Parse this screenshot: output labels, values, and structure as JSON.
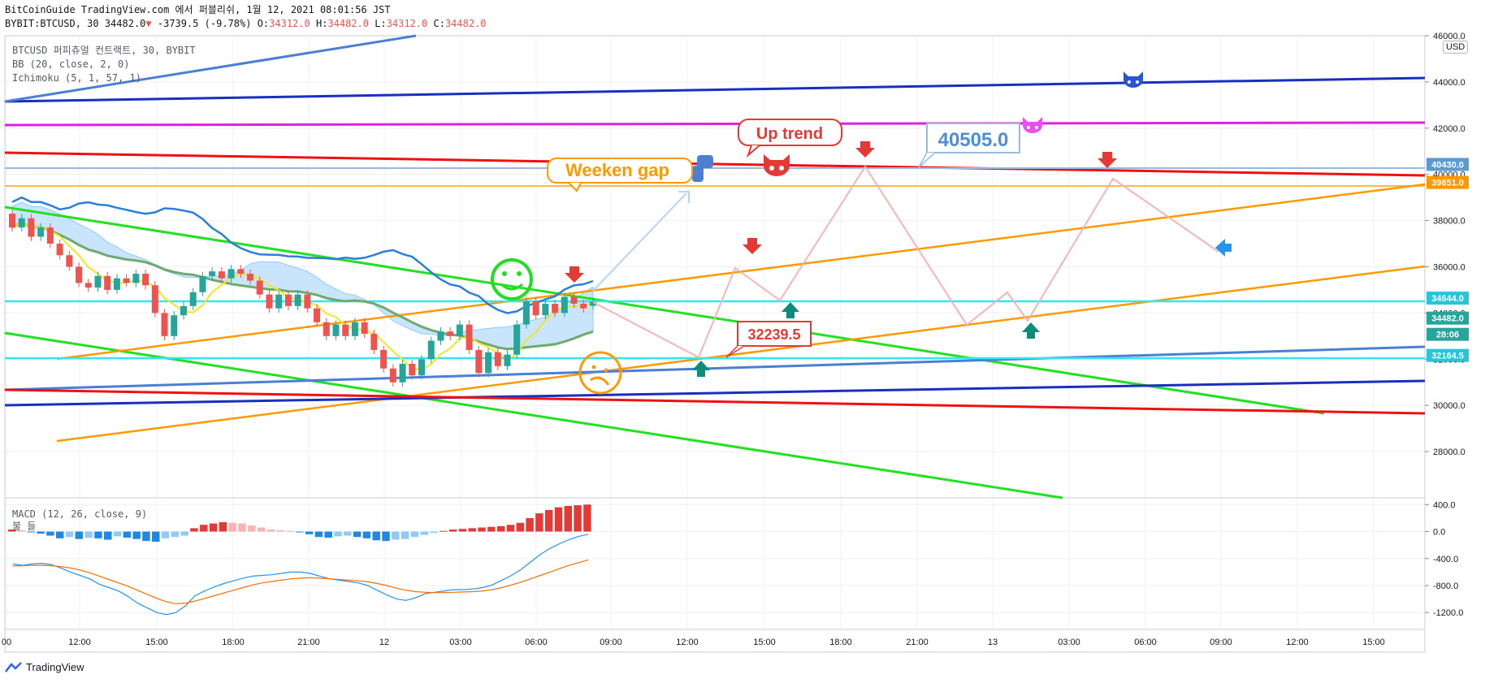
{
  "header": {
    "line1": "BitCoinGuide TradingView.com 에서 퍼블리쉬, 1월 12, 2021 08:01:56 JST",
    "symbol": "BYBIT:BTCUSD, 30",
    "last": "34482.0",
    "change": "-3739.5 (-9.78%)",
    "o_label": "O:",
    "o": "34312.0",
    "h_label": "H:",
    "h": "34482.0",
    "l_label": "L:",
    "l": "34312.0",
    "c_label": "C:",
    "c": "34482.0"
  },
  "legend": [
    "BTCUSD 퍼피츄얼 컨트랙트, 30, BYBIT",
    "BB (20, close, 2, 0)",
    "Ichimoku (5, 1, 57, 1)"
  ],
  "macd_legend": {
    "name": "MACD (12, 26, close, 9)",
    "sub": "불 들"
  },
  "currency": "USD",
  "footer": {
    "brand": "TradingView"
  },
  "colors": {
    "up": "#26a69a",
    "down": "#ef5350",
    "bb": "#2196f3",
    "cloud": "#90caf9"
  },
  "chart_data": {
    "type": "candlestick",
    "price_axis": {
      "ticks": [
        28000,
        30000,
        32000,
        34000,
        36000,
        38000,
        40000,
        42000,
        44000,
        46000
      ],
      "range": [
        26000,
        46000
      ]
    },
    "time_axis": [
      "00",
      "12:00",
      "15:00",
      "18:00",
      "21:00",
      "12",
      "03:00",
      "06:00",
      "09:00",
      "12:00",
      "15:00",
      "18:00",
      "21:00",
      "13",
      "03:00",
      "06:00",
      "09:00",
      "12:00",
      "15:00"
    ],
    "price_labels": [
      {
        "value": 40430.0,
        "text": "40430.0",
        "color": "#5b9bd5"
      },
      {
        "value": 39651.0,
        "text": "39651.0",
        "color": "#ff9800"
      },
      {
        "value": 34644.0,
        "text": "34644.0",
        "color": "#26c6da"
      },
      {
        "value": 34482.0,
        "text": "34482.0",
        "color": "#26a69a"
      },
      {
        "value": 33560,
        "text": "28:06",
        "color": "#26a69a"
      },
      {
        "value": 32164.5,
        "text": "32164.5",
        "color": "#26c6da"
      }
    ],
    "annotations": [
      {
        "text": "Up trend",
        "color": "#e53935"
      },
      {
        "text": "40505.0",
        "color": "#4a90d9"
      },
      {
        "text": "Weeken gap",
        "color": "#ff9800"
      },
      {
        "text": "32239.5",
        "color": "#e53935"
      }
    ],
    "candles": [
      {
        "o": 38300,
        "c": 37700
      },
      {
        "o": 37700,
        "c": 38100
      },
      {
        "o": 38100,
        "c": 37300
      },
      {
        "o": 37300,
        "c": 37700
      },
      {
        "o": 37700,
        "c": 37000
      },
      {
        "o": 37000,
        "c": 36500
      },
      {
        "o": 36500,
        "c": 36000
      },
      {
        "o": 36000,
        "c": 35300
      },
      {
        "o": 35300,
        "c": 35100
      },
      {
        "o": 35100,
        "c": 35600
      },
      {
        "o": 35600,
        "c": 35000
      },
      {
        "o": 35000,
        "c": 35500
      },
      {
        "o": 35500,
        "c": 35300
      },
      {
        "o": 35300,
        "c": 35700
      },
      {
        "o": 35700,
        "c": 35200
      },
      {
        "o": 35200,
        "c": 34000
      },
      {
        "o": 34000,
        "c": 33000
      },
      {
        "o": 33000,
        "c": 33900
      },
      {
        "o": 33900,
        "c": 34300
      },
      {
        "o": 34300,
        "c": 34900
      },
      {
        "o": 34900,
        "c": 35600
      },
      {
        "o": 35600,
        "c": 35800
      },
      {
        "o": 35800,
        "c": 35500
      },
      {
        "o": 35500,
        "c": 35900
      },
      {
        "o": 35900,
        "c": 35700
      },
      {
        "o": 35700,
        "c": 35400
      },
      {
        "o": 35400,
        "c": 34800
      },
      {
        "o": 34800,
        "c": 34200
      },
      {
        "o": 34200,
        "c": 34800
      },
      {
        "o": 34800,
        "c": 34300
      },
      {
        "o": 34300,
        "c": 34800
      },
      {
        "o": 34800,
        "c": 34200
      },
      {
        "o": 34200,
        "c": 33600
      },
      {
        "o": 33600,
        "c": 33000
      },
      {
        "o": 33000,
        "c": 33500
      },
      {
        "o": 33500,
        "c": 33000
      },
      {
        "o": 33000,
        "c": 33600
      },
      {
        "o": 33600,
        "c": 33100
      },
      {
        "o": 33100,
        "c": 32400
      },
      {
        "o": 32400,
        "c": 31600
      },
      {
        "o": 31600,
        "c": 31000
      },
      {
        "o": 31000,
        "c": 31800
      },
      {
        "o": 31800,
        "c": 31300
      },
      {
        "o": 31300,
        "c": 32000
      },
      {
        "o": 32000,
        "c": 32800
      },
      {
        "o": 32800,
        "c": 33200
      },
      {
        "o": 33200,
        "c": 33000
      },
      {
        "o": 33000,
        "c": 33500
      },
      {
        "o": 33500,
        "c": 32400
      },
      {
        "o": 32400,
        "c": 31400
      },
      {
        "o": 31400,
        "c": 32300
      },
      {
        "o": 32300,
        "c": 31700
      },
      {
        "o": 31700,
        "c": 32200
      },
      {
        "o": 32200,
        "c": 33500
      },
      {
        "o": 33500,
        "c": 34500
      },
      {
        "o": 34500,
        "c": 33900
      },
      {
        "o": 33900,
        "c": 34400
      },
      {
        "o": 34400,
        "c": 34000
      },
      {
        "o": 34000,
        "c": 34700
      },
      {
        "o": 34700,
        "c": 34400
      },
      {
        "o": 34400,
        "c": 34200
      },
      {
        "o": 34312,
        "c": 34482
      }
    ],
    "macd": {
      "axis_ticks": [
        400,
        0,
        -400,
        -800,
        -1200
      ],
      "range": [
        -1450,
        500
      ],
      "histogram": [
        30,
        20,
        -10,
        -30,
        -60,
        -100,
        -80,
        -110,
        -90,
        -100,
        -120,
        -70,
        -90,
        -110,
        -140,
        -150,
        -100,
        -80,
        -60,
        50,
        100,
        120,
        140,
        130,
        120,
        90,
        60,
        30,
        20,
        10,
        -10,
        -40,
        -80,
        -90,
        -70,
        -60,
        -80,
        -100,
        -130,
        -140,
        -120,
        -110,
        -80,
        -50,
        -20,
        10,
        30,
        40,
        50,
        60,
        70,
        80,
        100,
        130,
        200,
        270,
        320,
        360,
        380,
        390,
        400
      ],
      "macd_line": [
        -480,
        -500,
        -480,
        -470,
        -490,
        -540,
        -600,
        -650,
        -700,
        -780,
        -830,
        -880,
        -960,
        -1060,
        -1130,
        -1200,
        -1230,
        -1200,
        -1100,
        -950,
        -880,
        -820,
        -770,
        -730,
        -690,
        -660,
        -650,
        -640,
        -620,
        -600,
        -600,
        -620,
        -660,
        -700,
        -720,
        -740,
        -760,
        -800,
        -870,
        -940,
        -1000,
        -1020,
        -980,
        -920,
        -900,
        -880,
        -860,
        -860,
        -850,
        -830,
        -790,
        -720,
        -650,
        -560,
        -450,
        -340,
        -250,
        -180,
        -120,
        -70,
        -40
      ],
      "signal_line": [
        -510,
        -505,
        -500,
        -500,
        -505,
        -520,
        -540,
        -570,
        -610,
        -660,
        -710,
        -760,
        -810,
        -870,
        -930,
        -990,
        -1040,
        -1070,
        -1060,
        -1030,
        -990,
        -950,
        -910,
        -870,
        -830,
        -790,
        -760,
        -740,
        -720,
        -700,
        -690,
        -685,
        -690,
        -700,
        -710,
        -720,
        -730,
        -745,
        -770,
        -800,
        -840,
        -870,
        -890,
        -900,
        -905,
        -905,
        -900,
        -895,
        -890,
        -880,
        -860,
        -830,
        -790,
        -750,
        -700,
        -650,
        -600,
        -550,
        -500,
        -460,
        -420
      ]
    }
  }
}
